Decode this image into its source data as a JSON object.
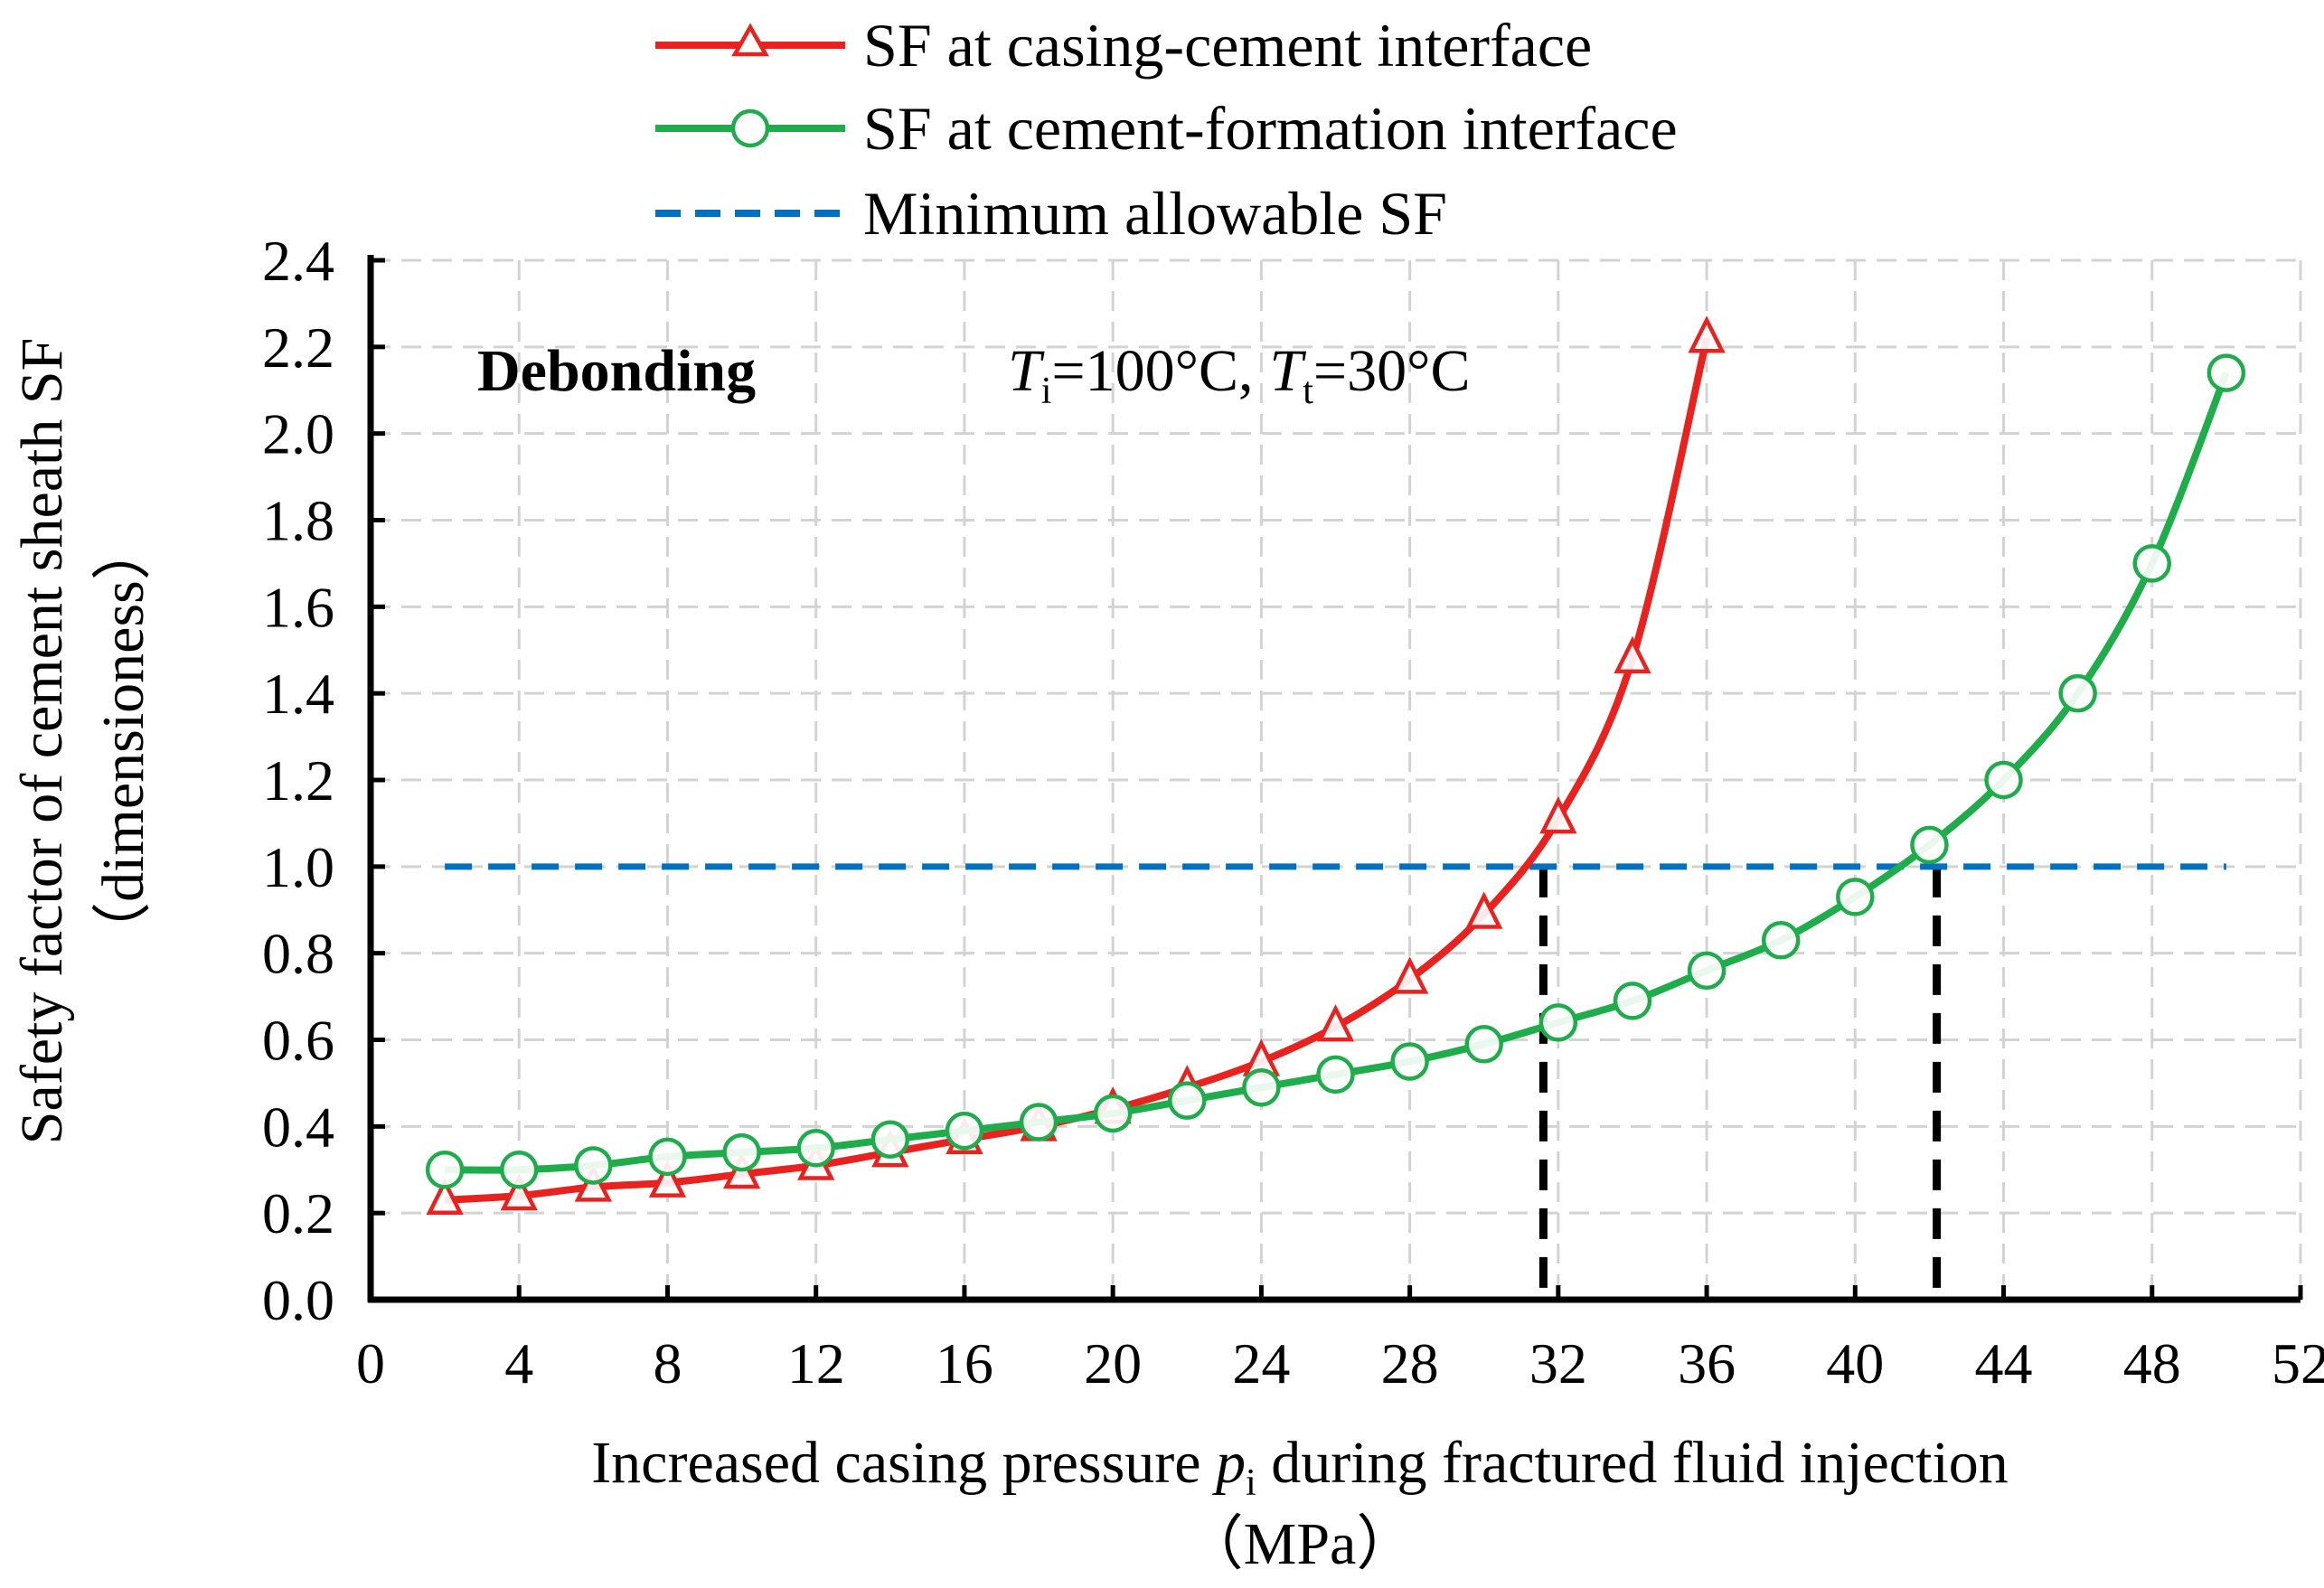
{
  "chart_data": {
    "type": "line",
    "title": "",
    "xlabel": {
      "prefix": "Increased casing pressure ",
      "var": "p",
      "sub": "i",
      "suffix": " during fractured fluid injection",
      "unit": "（MPa）"
    },
    "ylabel": {
      "line1": "Safety factor of cement sheath SF",
      "line2": "（dimensioness）"
    },
    "xlim": [
      0,
      52
    ],
    "ylim": [
      0,
      2.4
    ],
    "xticks": [
      "0",
      "4",
      "8",
      "12",
      "16",
      "20",
      "24",
      "28",
      "32",
      "36",
      "40",
      "44",
      "48",
      "52"
    ],
    "yticks": [
      "0.0",
      "0.2",
      "0.4",
      "0.6",
      "0.8",
      "1.0",
      "1.2",
      "1.4",
      "1.6",
      "1.8",
      "2.0",
      "2.2",
      "2.4"
    ],
    "grid": true,
    "legend_position": "top-center",
    "series": [
      {
        "name": "SF at casing-cement interface",
        "color": "#e8221e",
        "marker": "triangle",
        "x": [
          2,
          4,
          6,
          8,
          10,
          12,
          14,
          16,
          18,
          20,
          22,
          24,
          26,
          28,
          30,
          32,
          34,
          36
        ],
        "y": [
          0.23,
          0.24,
          0.26,
          0.27,
          0.29,
          0.31,
          0.34,
          0.37,
          0.4,
          0.44,
          0.49,
          0.55,
          0.63,
          0.74,
          0.89,
          1.11,
          1.48,
          2.22
        ]
      },
      {
        "name": "SF at cement-formation interface",
        "color": "#1fad4c",
        "marker": "circle",
        "x": [
          2,
          4,
          6,
          8,
          10,
          12,
          14,
          16,
          18,
          20,
          22,
          24,
          26,
          28,
          30,
          32,
          34,
          36,
          38,
          40,
          42,
          44,
          46,
          48,
          50
        ],
        "y": [
          0.3,
          0.3,
          0.31,
          0.33,
          0.34,
          0.35,
          0.37,
          0.39,
          0.41,
          0.43,
          0.46,
          0.49,
          0.52,
          0.55,
          0.59,
          0.64,
          0.69,
          0.76,
          0.83,
          0.93,
          1.05,
          1.2,
          1.4,
          1.7,
          2.14
        ]
      }
    ],
    "reference_line": {
      "name": "Minimum allowable SF",
      "color": "#0070c0",
      "y": 1.0,
      "x_range": [
        2,
        50
      ]
    },
    "drop_lines": [
      {
        "x": 31.6,
        "y": 1.0,
        "color": "#000000"
      },
      {
        "x": 42.2,
        "y": 1.0,
        "color": "#000000"
      }
    ],
    "annotations": {
      "label": "Debonding",
      "cond_T1": "T",
      "cond_T1_sub": "i",
      "cond_T1_val": "=100°C,",
      "cond_T2": "T",
      "cond_T2_sub": "t",
      "cond_T2_val": "=30°C"
    }
  }
}
